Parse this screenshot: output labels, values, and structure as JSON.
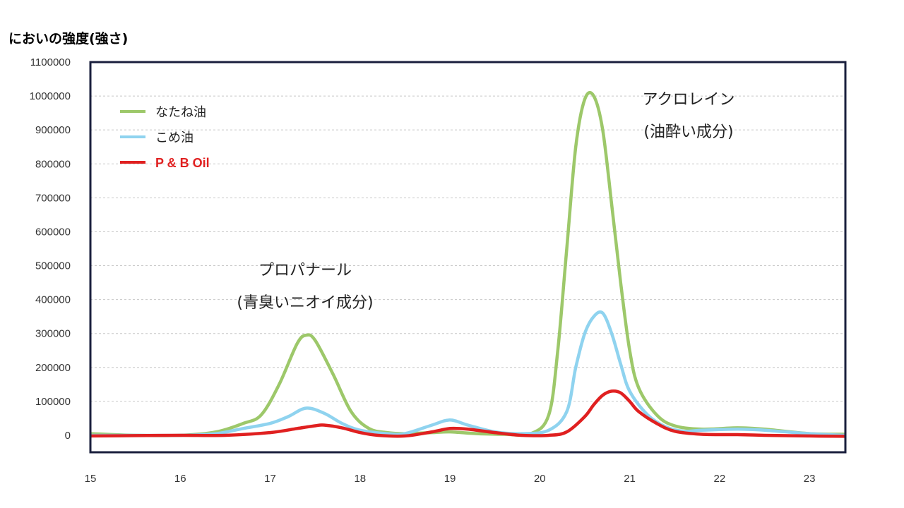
{
  "page": {
    "title": "においの強度(強さ)"
  },
  "chart_data": {
    "type": "line",
    "title": "においの強度(強さ)",
    "xlabel": "",
    "ylabel": "",
    "xlim": [
      15,
      23.4
    ],
    "ylim": [
      -50000,
      1100000
    ],
    "xticks": [
      15,
      16,
      17,
      18,
      19,
      20,
      21,
      22,
      23
    ],
    "xtick_labels": [
      "15",
      "16",
      "17",
      "18",
      "19",
      "20",
      "21",
      "22",
      "23"
    ],
    "yticks": [
      0,
      100000,
      200000,
      300000,
      400000,
      500000,
      600000,
      700000,
      800000,
      900000,
      1000000,
      1100000
    ],
    "ytick_labels": [
      "0",
      "100000",
      "200000",
      "300000",
      "400000",
      "500000",
      "600000",
      "700000",
      "800000",
      "900000",
      "1000000",
      "1100000"
    ],
    "grid": "horizontal-dashed",
    "legend_position": "top-left",
    "series": [
      {
        "name": "なたね油",
        "color": "#9dc86a",
        "x": [
          15.0,
          15.5,
          16.0,
          16.4,
          16.7,
          16.9,
          17.1,
          17.3,
          17.4,
          17.5,
          17.7,
          17.9,
          18.1,
          18.3,
          18.5,
          18.8,
          19.0,
          19.3,
          19.6,
          19.9,
          20.1,
          20.2,
          20.3,
          20.4,
          20.5,
          20.6,
          20.7,
          20.8,
          20.9,
          21.0,
          21.1,
          21.3,
          21.5,
          21.8,
          22.2,
          22.5,
          23.0,
          23.4
        ],
        "y": [
          5000,
          0,
          0,
          10000,
          35000,
          60000,
          150000,
          270000,
          295000,
          280000,
          180000,
          70000,
          20000,
          8000,
          5000,
          8000,
          10000,
          5000,
          3000,
          5000,
          60000,
          250000,
          550000,
          850000,
          990000,
          1000000,
          900000,
          680000,
          450000,
          250000,
          140000,
          60000,
          28000,
          18000,
          22000,
          18000,
          5000,
          3000
        ]
      },
      {
        "name": "こめ油",
        "color": "#8fd3ef",
        "x": [
          15.0,
          15.5,
          16.0,
          16.4,
          16.7,
          17.0,
          17.2,
          17.4,
          17.6,
          17.8,
          18.0,
          18.3,
          18.5,
          18.8,
          19.0,
          19.2,
          19.5,
          19.8,
          20.1,
          20.3,
          20.4,
          20.5,
          20.6,
          20.7,
          20.8,
          20.9,
          21.0,
          21.2,
          21.4,
          21.6,
          21.8,
          22.2,
          22.5,
          23.0,
          23.4
        ],
        "y": [
          0,
          0,
          0,
          5000,
          20000,
          35000,
          55000,
          80000,
          65000,
          35000,
          15000,
          5000,
          5000,
          30000,
          45000,
          30000,
          10000,
          5000,
          15000,
          70000,
          200000,
          300000,
          350000,
          360000,
          300000,
          210000,
          130000,
          60000,
          25000,
          12000,
          15000,
          18000,
          15000,
          5000,
          0
        ]
      },
      {
        "name": "P & B Oil",
        "color": "#e02020",
        "x": [
          15.0,
          15.5,
          16.0,
          16.5,
          17.0,
          17.3,
          17.5,
          17.6,
          17.8,
          18.0,
          18.2,
          18.5,
          18.8,
          19.0,
          19.2,
          19.5,
          19.8,
          20.1,
          20.3,
          20.5,
          20.6,
          20.7,
          20.8,
          20.9,
          21.0,
          21.1,
          21.3,
          21.5,
          21.8,
          22.2,
          22.5,
          23.0,
          23.4
        ],
        "y": [
          -2000,
          -1000,
          0,
          0,
          8000,
          20000,
          28000,
          30000,
          22000,
          8000,
          0,
          -2000,
          10000,
          20000,
          18000,
          8000,
          0,
          0,
          10000,
          55000,
          90000,
          118000,
          130000,
          125000,
          100000,
          70000,
          35000,
          12000,
          3000,
          2000,
          0,
          -2000,
          -3000
        ]
      }
    ],
    "annotations": [
      {
        "lines": [
          "アクロレイン",
          "(油酔い成分)"
        ],
        "x": 21.0,
        "y": 1000000
      },
      {
        "lines": [
          "プロパナール",
          "(青臭いニオイ成分)"
        ],
        "x": 17.6,
        "y": 440000
      }
    ]
  }
}
